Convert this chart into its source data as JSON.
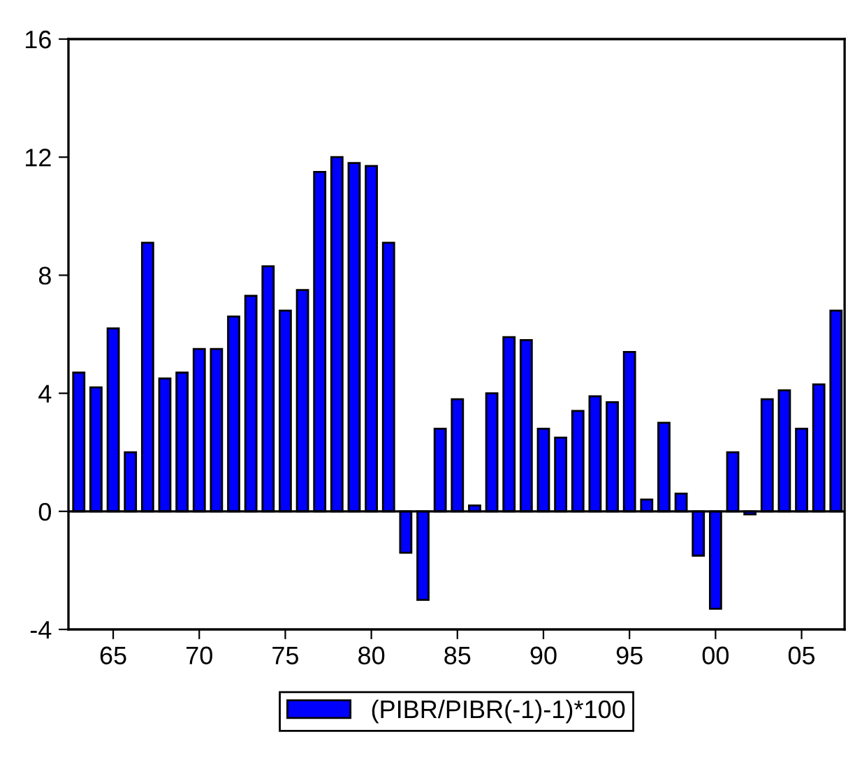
{
  "chart_data": {
    "type": "bar",
    "x": [
      1963,
      1964,
      1965,
      1966,
      1967,
      1968,
      1969,
      1970,
      1971,
      1972,
      1973,
      1974,
      1975,
      1976,
      1977,
      1978,
      1979,
      1980,
      1981,
      1982,
      1983,
      1984,
      1985,
      1986,
      1987,
      1988,
      1989,
      1990,
      1991,
      1992,
      1993,
      1994,
      1995,
      1996,
      1997,
      1998,
      1999,
      2000,
      2001,
      2002,
      2003,
      2004,
      2005,
      2006,
      2007
    ],
    "series": [
      {
        "name": "(PIBR/PIBR(-1)-1)*100",
        "color": "#0000ff",
        "values": [
          4.7,
          4.2,
          6.2,
          2.0,
          9.1,
          4.5,
          4.7,
          5.5,
          5.5,
          6.6,
          7.3,
          8.3,
          6.8,
          7.5,
          11.5,
          12.0,
          11.8,
          11.7,
          9.1,
          -1.4,
          -3.0,
          2.8,
          3.8,
          0.2,
          4.0,
          5.9,
          5.8,
          2.8,
          2.5,
          3.4,
          3.9,
          3.7,
          5.4,
          0.4,
          3.0,
          0.6,
          -1.5,
          -3.3,
          2.0,
          -0.1,
          3.8,
          4.1,
          2.8,
          4.3,
          6.8
        ]
      }
    ],
    "xlim": [
      1962.4,
      2007.5
    ],
    "xticks": [
      {
        "value": 1965,
        "label": "65"
      },
      {
        "value": 1970,
        "label": "70"
      },
      {
        "value": 1975,
        "label": "75"
      },
      {
        "value": 1980,
        "label": "80"
      },
      {
        "value": 1985,
        "label": "85"
      },
      {
        "value": 1990,
        "label": "90"
      },
      {
        "value": 1995,
        "label": "95"
      },
      {
        "value": 2000,
        "label": "00"
      },
      {
        "value": 2005,
        "label": "05"
      }
    ],
    "ylim": [
      -4,
      16
    ],
    "yticks": [
      -4,
      0,
      4,
      8,
      12,
      16
    ],
    "ref_lines": [
      {
        "axis": "y",
        "value": 0,
        "color": "#000000"
      }
    ],
    "grid": false,
    "legend": "bottom"
  }
}
